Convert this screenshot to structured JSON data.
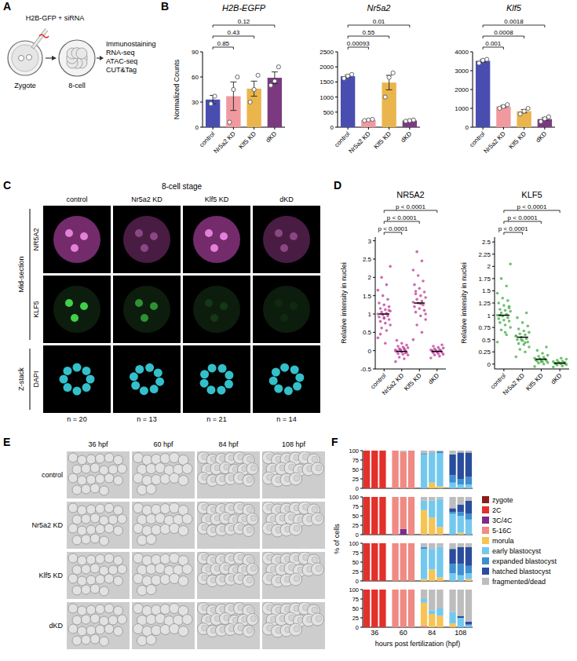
{
  "panel_labels": [
    "A",
    "B",
    "C",
    "D",
    "E",
    "F"
  ],
  "schematic": {
    "injection_label": "H2B-GFP + siRNA",
    "stages": [
      "Zygote",
      "8-cell"
    ],
    "assays": [
      "Immunostaining",
      "RNA-seq",
      "ATAC-seq",
      "CUT&Tag"
    ]
  },
  "images_c": {
    "title": "8-cell stage",
    "columns": [
      "control",
      "Nr5a2 KD",
      "Klf5 KD",
      "dKD"
    ],
    "rows": [
      "NR5A2",
      "KLF5",
      "DAPI"
    ],
    "row_groups": [
      {
        "label": "Mid-section",
        "rows": [
          "NR5A2",
          "KLF5"
        ]
      },
      {
        "label": "Z-stack",
        "rows": [
          "DAPI"
        ]
      }
    ],
    "n_labels": [
      "n = 20",
      "n = 13",
      "n = 21",
      "n = 14"
    ]
  },
  "images_e": {
    "columns": [
      "36 hpf",
      "60 hpf",
      "84 hpf",
      "108 hpf"
    ],
    "rows": [
      "control",
      "Nr5a2 KD",
      "Klf5 KD",
      "dKD"
    ]
  },
  "chart_data": [
    {
      "type": "bar",
      "title": "H2B-EGFP",
      "y_label": "Normalized Counts",
      "categories": [
        "control",
        "Nr5a2 KD",
        "Klf5 KD",
        "dKD"
      ],
      "values": [
        33,
        37,
        46,
        59
      ],
      "errors": [
        5,
        17,
        9,
        7
      ],
      "points": [
        [
          28,
          37
        ],
        [
          6,
          45,
          60
        ],
        [
          30,
          45,
          62
        ],
        [
          50,
          55,
          72
        ]
      ],
      "colors": [
        "#4a4db0",
        "#f09aa0",
        "#eab54c",
        "#7b3a80"
      ],
      "ylim": [
        0,
        90
      ],
      "yticks": [
        0,
        30,
        60,
        90
      ],
      "comparisons": [
        {
          "groups": [
            "control",
            "Nr5a2 KD"
          ],
          "label": "0.85"
        },
        {
          "groups": [
            "control",
            "Klf5 KD"
          ],
          "label": "0.43"
        },
        {
          "groups": [
            "control",
            "dKD"
          ],
          "label": "0.12"
        }
      ]
    },
    {
      "type": "bar",
      "title": "Nr5a2",
      "categories": [
        "control",
        "Nr5a2 KD",
        "Klf5 KD",
        "dKD"
      ],
      "values": [
        1690,
        240,
        1480,
        220
      ],
      "errors": [
        40,
        12,
        240,
        12
      ],
      "points": [
        [
          1620,
          1700,
          1750
        ],
        [
          220,
          240,
          260
        ],
        [
          1000,
          1650,
          1800
        ],
        [
          200,
          220,
          240
        ]
      ],
      "colors": [
        "#4a4db0",
        "#f09aa0",
        "#eab54c",
        "#7b3a80"
      ],
      "ylim": [
        0,
        2500
      ],
      "yticks": [
        0,
        500,
        1000,
        1500,
        2000,
        2500
      ],
      "comparisons": [
        {
          "groups": [
            "control",
            "Nr5a2 KD"
          ],
          "label": "0.00093"
        },
        {
          "groups": [
            "control",
            "Klf5 KD"
          ],
          "label": "0.55"
        },
        {
          "groups": [
            "control",
            "dKD"
          ],
          "label": "0.01"
        }
      ]
    },
    {
      "type": "bar",
      "title": "Klf5",
      "categories": [
        "control",
        "Nr5a2 KD",
        "Klf5 KD",
        "dKD"
      ],
      "values": [
        3520,
        1100,
        850,
        430
      ],
      "errors": [
        70,
        60,
        90,
        75
      ],
      "points": [
        [
          3400,
          3550,
          3600
        ],
        [
          1000,
          1100,
          1200
        ],
        [
          700,
          850,
          1000
        ],
        [
          300,
          450,
          550
        ]
      ],
      "colors": [
        "#4a4db0",
        "#f09aa0",
        "#eab54c",
        "#7b3a80"
      ],
      "ylim": [
        0,
        4000
      ],
      "yticks": [
        0,
        1000,
        2000,
        3000,
        4000
      ],
      "comparisons": [
        {
          "groups": [
            "control",
            "Nr5a2 KD"
          ],
          "label": "0.001"
        },
        {
          "groups": [
            "control",
            "Klf5 KD"
          ],
          "label": "0.0008"
        },
        {
          "groups": [
            "control",
            "dKD"
          ],
          "label": "0.0018"
        }
      ]
    },
    {
      "type": "strip",
      "title": "NR5A2",
      "y_label": "Relative intensity in nuclei",
      "categories": [
        "control",
        "Nr5a2 KD",
        "Klf5 KD",
        "dKD"
      ],
      "color": "#c2459e",
      "points": [
        [
          0.35,
          0.55,
          0.62,
          0.7,
          0.75,
          0.8,
          0.85,
          0.88,
          0.92,
          0.95,
          0.98,
          1.0,
          1.02,
          1.05,
          1.08,
          1.12,
          1.15,
          1.2,
          1.25,
          1.3,
          1.4,
          1.5,
          1.65,
          1.8,
          2.0,
          2.3,
          0.2,
          0.45,
          1.1,
          0.9
        ],
        [
          -0.3,
          -0.22,
          -0.18,
          -0.12,
          -0.1,
          -0.08,
          -0.05,
          -0.04,
          -0.02,
          0,
          0.01,
          0.02,
          0.04,
          0.05,
          0.08,
          0.1,
          0.12,
          0.15,
          0.2,
          0.28,
          -0.06,
          0.03,
          -0.01,
          0.06
        ],
        [
          0.3,
          0.5,
          0.7,
          0.85,
          0.95,
          1.05,
          1.1,
          1.15,
          1.2,
          1.25,
          1.3,
          1.32,
          1.35,
          1.4,
          1.45,
          1.5,
          1.55,
          1.6,
          1.7,
          1.8,
          1.9,
          2.05,
          2.2,
          2.45,
          2.7,
          1.0,
          1.28,
          1.62
        ],
        [
          -0.2,
          -0.15,
          -0.12,
          -0.1,
          -0.08,
          -0.06,
          -0.05,
          -0.03,
          -0.02,
          0,
          0.01,
          0.02,
          0.03,
          0.05,
          0.07,
          0.09,
          0.12,
          0.16,
          -0.04,
          0.0
        ]
      ],
      "means": [
        1.0,
        -0.02,
        1.3,
        -0.02
      ],
      "ylim": [
        -0.5,
        3.1
      ],
      "yticks": [
        -0.5,
        0,
        0.5,
        1,
        1.5,
        2,
        2.5,
        3
      ],
      "comparisons": [
        {
          "groups": [
            "control",
            "Nr5a2 KD"
          ],
          "label": "p < 0.0001"
        },
        {
          "groups": [
            "control",
            "Klf5 KD"
          ],
          "label": "p < 0.0001"
        },
        {
          "groups": [
            "control",
            "dKD"
          ],
          "label": "p < 0.0001"
        }
      ]
    },
    {
      "type": "strip",
      "title": "KLF5",
      "y_label": "Relative intensity in nuclei",
      "categories": [
        "control",
        "Nr5a2 KD",
        "Klf5 KD",
        "dKD"
      ],
      "color": "#4caf50",
      "points": [
        [
          0.45,
          0.6,
          0.7,
          0.75,
          0.8,
          0.85,
          0.88,
          0.9,
          0.93,
          0.95,
          0.98,
          1.0,
          1.02,
          1.05,
          1.08,
          1.1,
          1.12,
          1.15,
          1.2,
          1.25,
          1.3,
          1.35,
          1.45,
          1.6,
          1.75,
          2.05,
          0.65,
          1.0,
          1.18
        ],
        [
          0.15,
          0.25,
          0.3,
          0.35,
          0.4,
          0.42,
          0.45,
          0.48,
          0.5,
          0.52,
          0.55,
          0.57,
          0.6,
          0.62,
          0.65,
          0.68,
          0.72,
          0.78,
          0.85,
          0.95,
          1.05,
          0.5,
          0.58,
          0.44
        ],
        [
          -0.05,
          0,
          0.02,
          0.03,
          0.05,
          0.06,
          0.07,
          0.08,
          0.09,
          0.1,
          0.11,
          0.12,
          0.14,
          0.16,
          0.18,
          0.22,
          0.28,
          0.35,
          0.05,
          0.08
        ],
        [
          -0.06,
          -0.04,
          -0.02,
          -0.01,
          0,
          0.01,
          0.01,
          0.02,
          0.02,
          0.03,
          0.04,
          0.05,
          0.06,
          0.08,
          0.1,
          0.12,
          0.0,
          0.03
        ]
      ],
      "means": [
        1.0,
        0.55,
        0.1,
        0.02
      ],
      "ylim": [
        -0.1,
        2.6
      ],
      "yticks": [
        0,
        0.25,
        0.5,
        0.75,
        1,
        1.25,
        1.5,
        1.75,
        2,
        2.25,
        2.5
      ],
      "comparisons": [
        {
          "groups": [
            "control",
            "Nr5a2 KD"
          ],
          "label": "p < 0.0001"
        },
        {
          "groups": [
            "control",
            "Klf5 KD"
          ],
          "label": "p < 0.0001"
        },
        {
          "groups": [
            "control",
            "dKD"
          ],
          "label": "p < 0.0001"
        }
      ]
    },
    {
      "type": "bar",
      "stacked": true,
      "legend": "right",
      "y_label": "% of cells",
      "x_label": "hours post fertilization (hpf)",
      "categories": [
        null,
        "36",
        null,
        null,
        "60",
        null,
        null,
        "84",
        null,
        null,
        "108",
        null
      ],
      "ylim": [
        0,
        100
      ],
      "yticks": [
        0,
        25,
        50,
        75,
        100
      ],
      "series": [
        {
          "name": "zygote",
          "color": "#8b1c1c",
          "values": [
            [
              0,
              0,
              0,
              0,
              0,
              0,
              0,
              0,
              0,
              0,
              0,
              0
            ],
            [
              0,
              0,
              0,
              0,
              0,
              0,
              0,
              0,
              0,
              0,
              0,
              0
            ],
            [
              0,
              0,
              0,
              0,
              0,
              0,
              0,
              0,
              0,
              0,
              0,
              0
            ],
            [
              0,
              0,
              0,
              0,
              0,
              0,
              0,
              0,
              0,
              0,
              0,
              0
            ]
          ]
        },
        {
          "name": "2C",
          "color": "#e3302b",
          "values": [
            [
              100,
              100,
              100,
              0,
              0,
              0,
              0,
              0,
              0,
              0,
              0,
              0
            ],
            [
              100,
              100,
              100,
              0,
              0,
              0,
              0,
              0,
              0,
              0,
              0,
              0
            ],
            [
              100,
              100,
              100,
              0,
              0,
              0,
              0,
              0,
              0,
              0,
              0,
              0
            ],
            [
              100,
              100,
              100,
              0,
              0,
              0,
              0,
              0,
              0,
              0,
              0,
              0
            ]
          ]
        },
        {
          "name": "3C/4C",
          "color": "#7d2b8b",
          "values": [
            [
              0,
              0,
              0,
              0,
              0,
              0,
              0,
              0,
              0,
              0,
              0,
              0
            ],
            [
              0,
              0,
              0,
              0,
              15,
              0,
              0,
              0,
              0,
              0,
              0,
              0
            ],
            [
              0,
              0,
              0,
              0,
              0,
              0,
              0,
              0,
              0,
              0,
              0,
              0
            ],
            [
              0,
              0,
              0,
              0,
              0,
              0,
              0,
              0,
              0,
              0,
              0,
              0
            ]
          ]
        },
        {
          "name": "5-16C",
          "color": "#f08a84",
          "values": [
            [
              0,
              0,
              0,
              100,
              96,
              100,
              0,
              0,
              0,
              0,
              0,
              0
            ],
            [
              0,
              0,
              0,
              100,
              85,
              100,
              0,
              0,
              0,
              0,
              0,
              0
            ],
            [
              0,
              0,
              0,
              100,
              100,
              100,
              0,
              0,
              0,
              0,
              0,
              0
            ],
            [
              0,
              0,
              0,
              100,
              100,
              100,
              5,
              0,
              0,
              0,
              0,
              0
            ]
          ]
        },
        {
          "name": "morula",
          "color": "#f6c453",
          "values": [
            [
              0,
              0,
              0,
              0,
              0,
              0,
              0,
              15,
              5,
              0,
              0,
              0
            ],
            [
              0,
              0,
              0,
              0,
              0,
              0,
              65,
              45,
              20,
              0,
              5,
              0
            ],
            [
              0,
              0,
              0,
              0,
              0,
              0,
              5,
              30,
              10,
              0,
              0,
              5
            ],
            [
              0,
              0,
              0,
              0,
              0,
              0,
              60,
              35,
              30,
              10,
              0,
              0
            ]
          ]
        },
        {
          "name": "early blastocyst",
          "color": "#74c8ee",
          "values": [
            [
              0,
              0,
              0,
              0,
              0,
              0,
              90,
              78,
              88,
              15,
              10,
              10
            ],
            [
              0,
              0,
              0,
              0,
              0,
              0,
              25,
              45,
              75,
              55,
              45,
              40
            ],
            [
              0,
              0,
              0,
              0,
              0,
              0,
              80,
              55,
              80,
              20,
              15,
              15
            ],
            [
              0,
              0,
              0,
              0,
              0,
              0,
              10,
              10,
              20,
              30,
              25,
              5
            ]
          ]
        },
        {
          "name": "expanded blastocyst",
          "color": "#3d8fd1",
          "values": [
            [
              0,
              0,
              0,
              0,
              0,
              0,
              3,
              2,
              5,
              20,
              15,
              20
            ],
            [
              0,
              0,
              0,
              0,
              0,
              0,
              0,
              0,
              0,
              5,
              10,
              15
            ],
            [
              0,
              0,
              0,
              0,
              0,
              0,
              5,
              0,
              0,
              25,
              30,
              20
            ],
            [
              0,
              0,
              0,
              0,
              0,
              0,
              0,
              0,
              0,
              0,
              0,
              3
            ]
          ]
        },
        {
          "name": "hatched blastocyst",
          "color": "#2a4c9c",
          "values": [
            [
              0,
              0,
              0,
              0,
              0,
              0,
              0,
              0,
              0,
              55,
              70,
              65
            ],
            [
              0,
              0,
              0,
              0,
              0,
              0,
              0,
              0,
              0,
              10,
              20,
              35
            ],
            [
              0,
              0,
              0,
              0,
              0,
              0,
              0,
              0,
              0,
              40,
              45,
              50
            ],
            [
              0,
              0,
              0,
              0,
              0,
              0,
              0,
              0,
              0,
              0,
              5,
              7
            ]
          ]
        },
        {
          "name": "fragmented/dead",
          "color": "#bdbdbd",
          "values": [
            [
              0,
              0,
              0,
              0,
              4,
              0,
              7,
              5,
              2,
              10,
              5,
              5
            ],
            [
              0,
              0,
              0,
              0,
              0,
              0,
              10,
              10,
              5,
              30,
              20,
              10
            ],
            [
              0,
              0,
              0,
              0,
              0,
              0,
              10,
              15,
              10,
              15,
              10,
              10
            ],
            [
              0,
              0,
              0,
              0,
              0,
              0,
              25,
              55,
              50,
              60,
              70,
              85
            ]
          ]
        }
      ]
    }
  ]
}
